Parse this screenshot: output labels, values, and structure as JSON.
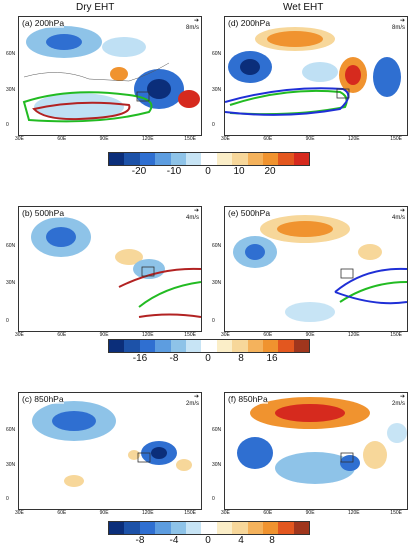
{
  "columns": {
    "left": "Dry EHT",
    "right": "Wet EHT"
  },
  "panels": {
    "a": {
      "label": "(a) 200hPa",
      "ref": "8m/s"
    },
    "b": {
      "label": "(b) 500hPa",
      "ref": "4m/s"
    },
    "c": {
      "label": "(c) 850hPa",
      "ref": "2m/s"
    },
    "d": {
      "label": "(d) 200hPa",
      "ref": "8m/s"
    },
    "e": {
      "label": "(e) 500hPa",
      "ref": "4m/s"
    },
    "f": {
      "label": "(f) 850hPa",
      "ref": "2m/s"
    }
  },
  "axes": {
    "lon": [
      "30E",
      "60E",
      "90E",
      "120E",
      "150E"
    ],
    "lat": [
      "60N",
      "30N",
      "0"
    ]
  },
  "colorbars": [
    {
      "labels": [
        "-20",
        "-10",
        "0",
        "10",
        "20"
      ]
    },
    {
      "labels": [
        "-16",
        "-8",
        "0",
        "8",
        "16"
      ]
    },
    {
      "labels": [
        "-8",
        "-4",
        "0",
        "4",
        "8"
      ]
    }
  ],
  "colors": {
    "blue_dark": "#0b2e7a",
    "blue_mid": "#2f6fd1",
    "blue_light": "#a9d3ef",
    "orange_light": "#f7d79a",
    "orange": "#f0932f",
    "red": "#d62a1e",
    "contour_green": "#22bb22",
    "contour_red": "#b22222",
    "contour_blue": "#1f2fd6"
  }
}
